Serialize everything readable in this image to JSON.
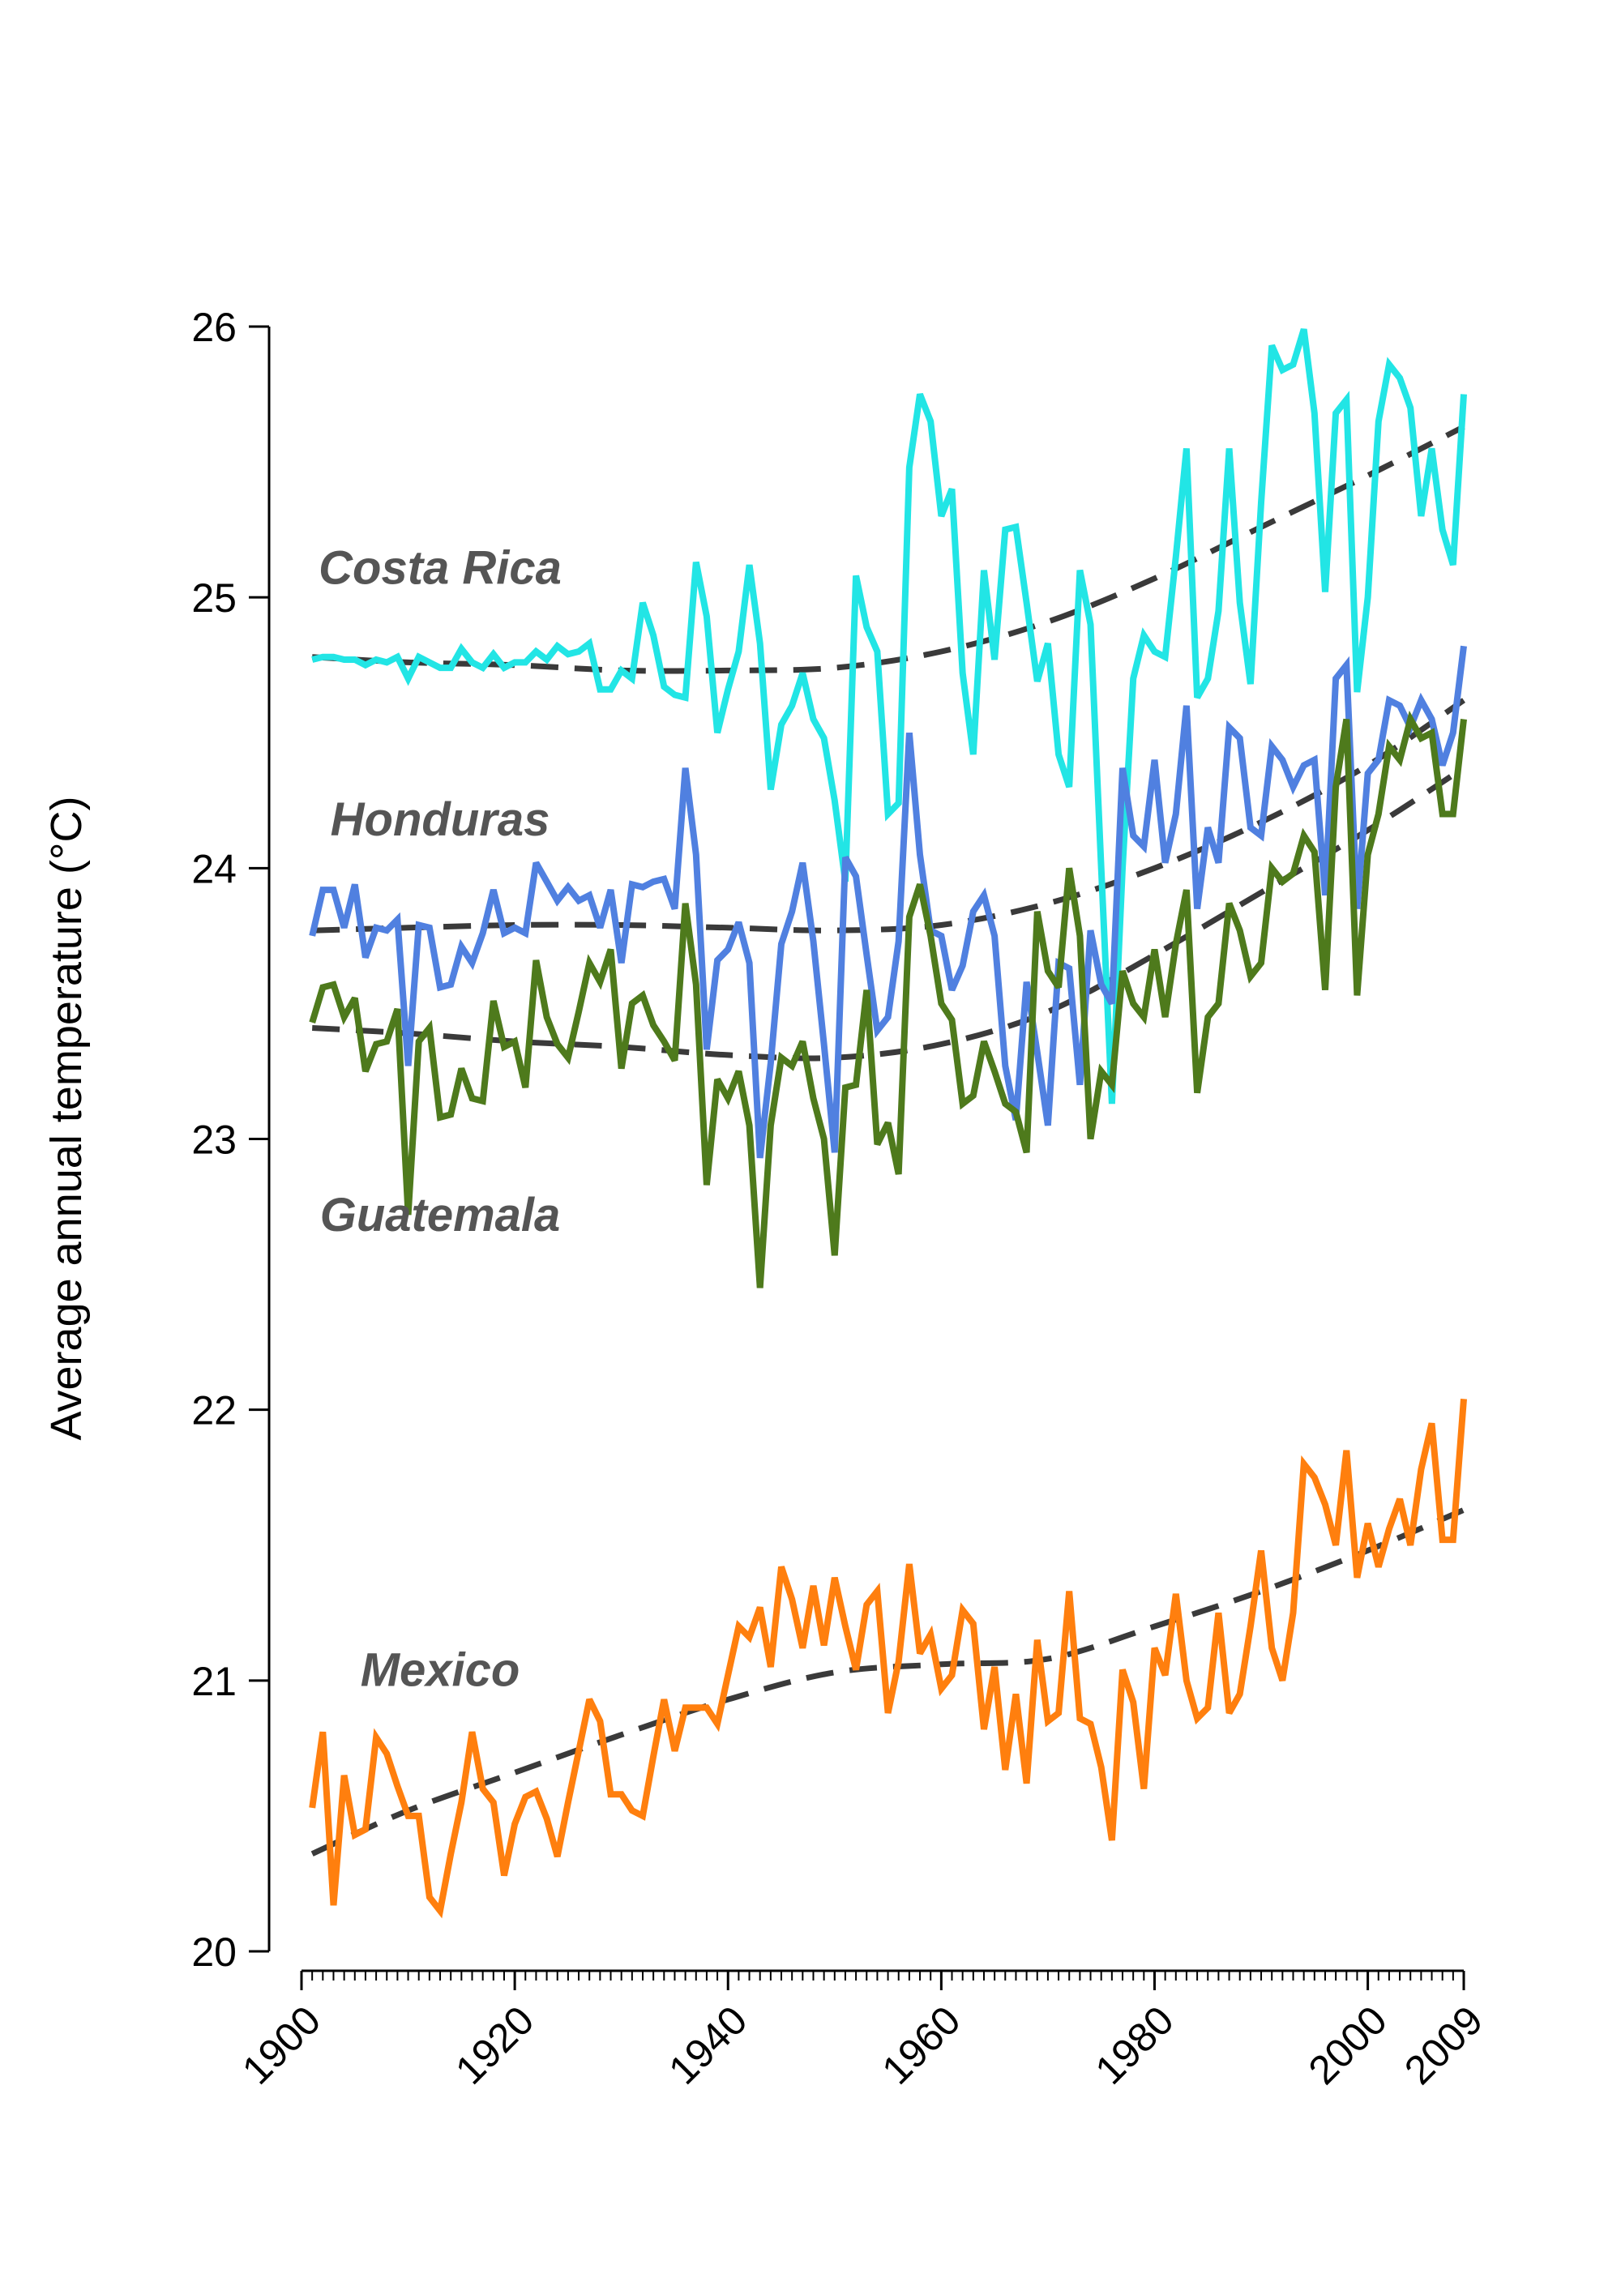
{
  "chart_data": {
    "type": "line",
    "title": "",
    "xlabel": "",
    "ylabel": "Average annual temperature (°C)",
    "xlim": [
      1900,
      2009
    ],
    "ylim": [
      20,
      26
    ],
    "x_ticks": [
      1900,
      1920,
      1940,
      1960,
      1980,
      2000,
      2009
    ],
    "y_ticks": [
      20,
      21,
      22,
      23,
      24,
      25,
      26
    ],
    "grid": false,
    "legend": "none",
    "x": [
      1901,
      1902,
      1903,
      1904,
      1905,
      1906,
      1907,
      1908,
      1909,
      1910,
      1911,
      1912,
      1913,
      1914,
      1915,
      1916,
      1917,
      1918,
      1919,
      1920,
      1921,
      1922,
      1923,
      1924,
      1925,
      1926,
      1927,
      1928,
      1929,
      1930,
      1931,
      1932,
      1933,
      1934,
      1935,
      1936,
      1937,
      1938,
      1939,
      1940,
      1941,
      1942,
      1943,
      1944,
      1945,
      1946,
      1947,
      1948,
      1949,
      1950,
      1951,
      1952,
      1953,
      1954,
      1955,
      1956,
      1957,
      1958,
      1959,
      1960,
      1961,
      1962,
      1963,
      1964,
      1965,
      1966,
      1967,
      1968,
      1969,
      1970,
      1971,
      1972,
      1973,
      1974,
      1975,
      1976,
      1977,
      1978,
      1979,
      1980,
      1981,
      1982,
      1983,
      1984,
      1985,
      1986,
      1987,
      1988,
      1989,
      1990,
      1991,
      1992,
      1993,
      1994,
      1995,
      1996,
      1997,
      1998,
      1999,
      2000,
      2001,
      2002,
      2003,
      2004,
      2005,
      2006,
      2007,
      2008,
      2009
    ],
    "series": [
      {
        "name": "Costa Rica",
        "color": "#22E5E5",
        "values": [
          24.77,
          24.78,
          24.78,
          24.77,
          24.77,
          24.75,
          24.77,
          24.76,
          24.78,
          24.7,
          24.78,
          24.76,
          24.74,
          24.74,
          24.81,
          24.76,
          24.74,
          24.79,
          24.74,
          24.76,
          24.76,
          24.8,
          24.77,
          24.82,
          24.79,
          24.8,
          24.83,
          24.66,
          24.66,
          24.73,
          24.7,
          24.98,
          24.86,
          24.67,
          24.64,
          24.63,
          25.13,
          24.93,
          24.5,
          24.66,
          24.8,
          25.12,
          24.83,
          24.29,
          24.53,
          24.6,
          24.72,
          24.55,
          24.48,
          24.25,
          23.95,
          25.08,
          24.89,
          24.8,
          24.2,
          24.24,
          25.48,
          25.75,
          25.65,
          25.3,
          25.4,
          24.72,
          24.42,
          25.1,
          24.77,
          25.25,
          25.26,
          24.98,
          24.69,
          24.83,
          24.42,
          24.3,
          25.1,
          24.9,
          24.0,
          23.13,
          24.0,
          24.7,
          24.86,
          24.8,
          24.78,
          25.15,
          25.55,
          24.63,
          24.7,
          24.95,
          25.55,
          24.98,
          24.68,
          25.35,
          25.93,
          25.84,
          25.86,
          25.99,
          25.68,
          25.02,
          25.68,
          25.73,
          24.65,
          25.0,
          25.65,
          25.86,
          25.81,
          25.7,
          25.3,
          25.55,
          25.25,
          25.12,
          25.75
        ]
      },
      {
        "name": "Honduras",
        "color": "#5080E0",
        "values": [
          23.75,
          23.92,
          23.92,
          23.78,
          23.94,
          23.67,
          23.78,
          23.77,
          23.81,
          23.27,
          23.79,
          23.78,
          23.56,
          23.57,
          23.71,
          23.65,
          23.76,
          23.92,
          23.76,
          23.78,
          23.76,
          24.02,
          23.95,
          23.88,
          23.93,
          23.88,
          23.9,
          23.78,
          23.92,
          23.65,
          23.94,
          23.93,
          23.95,
          23.96,
          23.85,
          24.37,
          24.05,
          23.33,
          23.66,
          23.7,
          23.8,
          23.65,
          22.93,
          23.28,
          23.72,
          23.84,
          24.02,
          23.73,
          23.35,
          22.95,
          24.04,
          23.97,
          23.68,
          23.4,
          23.45,
          23.73,
          24.5,
          24.05,
          23.77,
          23.75,
          23.55,
          23.64,
          23.84,
          23.9,
          23.75,
          23.27,
          23.07,
          23.58,
          23.32,
          23.05,
          23.65,
          23.63,
          23.2,
          23.77,
          23.57,
          23.5,
          24.37,
          24.12,
          24.08,
          24.4,
          24.02,
          24.2,
          24.6,
          23.85,
          24.15,
          24.02,
          24.52,
          24.48,
          24.15,
          24.12,
          24.45,
          24.4,
          24.3,
          24.38,
          24.4,
          23.9,
          24.7,
          24.75,
          23.85,
          24.35,
          24.4,
          24.62,
          24.6,
          24.52,
          24.62,
          24.55,
          24.38,
          24.5,
          24.82
        ]
      },
      {
        "name": "Guatemala",
        "color": "#4E7A1C",
        "values": [
          23.43,
          23.56,
          23.57,
          23.45,
          23.52,
          23.25,
          23.35,
          23.36,
          23.48,
          22.72,
          23.36,
          23.41,
          23.08,
          23.09,
          23.26,
          23.15,
          23.14,
          23.51,
          23.34,
          23.36,
          23.19,
          23.66,
          23.45,
          23.35,
          23.3,
          23.47,
          23.65,
          23.58,
          23.7,
          23.26,
          23.5,
          23.53,
          23.42,
          23.36,
          23.29,
          23.87,
          23.57,
          22.83,
          23.22,
          23.15,
          23.25,
          23.05,
          22.45,
          23.05,
          23.3,
          23.27,
          23.36,
          23.15,
          23.0,
          22.57,
          23.19,
          23.2,
          23.55,
          22.98,
          23.06,
          22.87,
          23.82,
          23.94,
          23.75,
          23.5,
          23.44,
          23.13,
          23.16,
          23.36,
          23.25,
          23.13,
          23.1,
          22.95,
          23.84,
          23.62,
          23.56,
          24.0,
          23.75,
          23.0,
          23.25,
          23.2,
          23.62,
          23.5,
          23.45,
          23.7,
          23.45,
          23.72,
          23.92,
          23.17,
          23.45,
          23.5,
          23.87,
          23.77,
          23.6,
          23.65,
          24.0,
          23.95,
          23.98,
          24.12,
          24.06,
          23.55,
          24.3,
          24.55,
          23.53,
          24.05,
          24.2,
          24.45,
          24.4,
          24.55,
          24.48,
          24.5,
          24.2,
          24.2,
          24.55
        ]
      },
      {
        "name": "Mexico",
        "color": "#FF7F0E",
        "values": [
          20.53,
          20.81,
          20.17,
          20.65,
          20.43,
          20.45,
          20.79,
          20.73,
          20.61,
          20.5,
          20.5,
          20.2,
          20.15,
          20.36,
          20.55,
          20.81,
          20.6,
          20.55,
          20.28,
          20.47,
          20.57,
          20.59,
          20.49,
          20.35,
          20.55,
          20.74,
          20.93,
          20.85,
          20.58,
          20.58,
          20.52,
          20.5,
          20.72,
          20.93,
          20.74,
          20.9,
          20.9,
          20.9,
          20.84,
          21.02,
          21.2,
          21.16,
          21.27,
          21.05,
          21.42,
          21.3,
          21.12,
          21.35,
          21.13,
          21.38,
          21.2,
          21.04,
          21.28,
          21.33,
          20.88,
          21.07,
          21.43,
          21.1,
          21.17,
          20.97,
          21.02,
          21.26,
          21.21,
          20.82,
          21.05,
          20.67,
          20.95,
          20.62,
          21.15,
          20.85,
          20.88,
          21.33,
          20.86,
          20.84,
          20.68,
          20.41,
          21.04,
          20.92,
          20.6,
          21.12,
          21.02,
          21.32,
          21.0,
          20.86,
          20.9,
          21.25,
          20.88,
          20.95,
          21.2,
          21.48,
          21.12,
          21.0,
          21.25,
          21.8,
          21.75,
          21.65,
          21.5,
          21.85,
          21.38,
          21.58,
          21.42,
          21.56,
          21.67,
          21.5,
          21.78,
          21.95,
          21.52,
          21.52,
          22.04
        ]
      }
    ],
    "trend_series": [
      {
        "name": "Costa Rica",
        "style": "dashed",
        "color": "#3A3A3A",
        "x": [
          1901,
          1910,
          1920,
          1930,
          1940,
          1950,
          1960,
          1970,
          1980,
          1990,
          2000,
          2009
        ],
        "values": [
          24.78,
          24.76,
          24.75,
          24.73,
          24.73,
          24.74,
          24.8,
          24.91,
          25.07,
          25.26,
          25.45,
          25.63
        ]
      },
      {
        "name": "Honduras",
        "style": "dashed",
        "color": "#3A3A3A",
        "x": [
          1901,
          1910,
          1920,
          1930,
          1940,
          1950,
          1960,
          1970,
          1980,
          1990,
          2000,
          2009
        ],
        "values": [
          23.77,
          23.78,
          23.79,
          23.79,
          23.78,
          23.77,
          23.79,
          23.87,
          24.0,
          24.17,
          24.38,
          24.62
        ]
      },
      {
        "name": "Guatemala",
        "style": "dashed",
        "color": "#3A3A3A",
        "x": [
          1901,
          1910,
          1920,
          1930,
          1940,
          1950,
          1960,
          1970,
          1980,
          1990,
          2000,
          2009
        ],
        "values": [
          23.41,
          23.39,
          23.36,
          23.34,
          23.31,
          23.3,
          23.35,
          23.47,
          23.68,
          23.91,
          24.14,
          24.37
        ]
      },
      {
        "name": "Mexico",
        "style": "dashed",
        "color": "#3A3A3A",
        "x": [
          1901,
          1910,
          1920,
          1930,
          1940,
          1950,
          1960,
          1970,
          1980,
          1990,
          2000,
          2009
        ],
        "values": [
          20.36,
          20.52,
          20.66,
          20.8,
          20.93,
          21.03,
          21.06,
          21.08,
          21.2,
          21.33,
          21.48,
          21.63
        ]
      }
    ],
    "annotations": [
      {
        "text": "Costa Rica",
        "x": 1913,
        "y": 25.05
      },
      {
        "text": "Honduras",
        "x": 1913,
        "y": 24.12
      },
      {
        "text": "Guatemala",
        "x": 1913,
        "y": 22.66
      },
      {
        "text": "Mexico",
        "x": 1913,
        "y": 20.98
      }
    ]
  }
}
